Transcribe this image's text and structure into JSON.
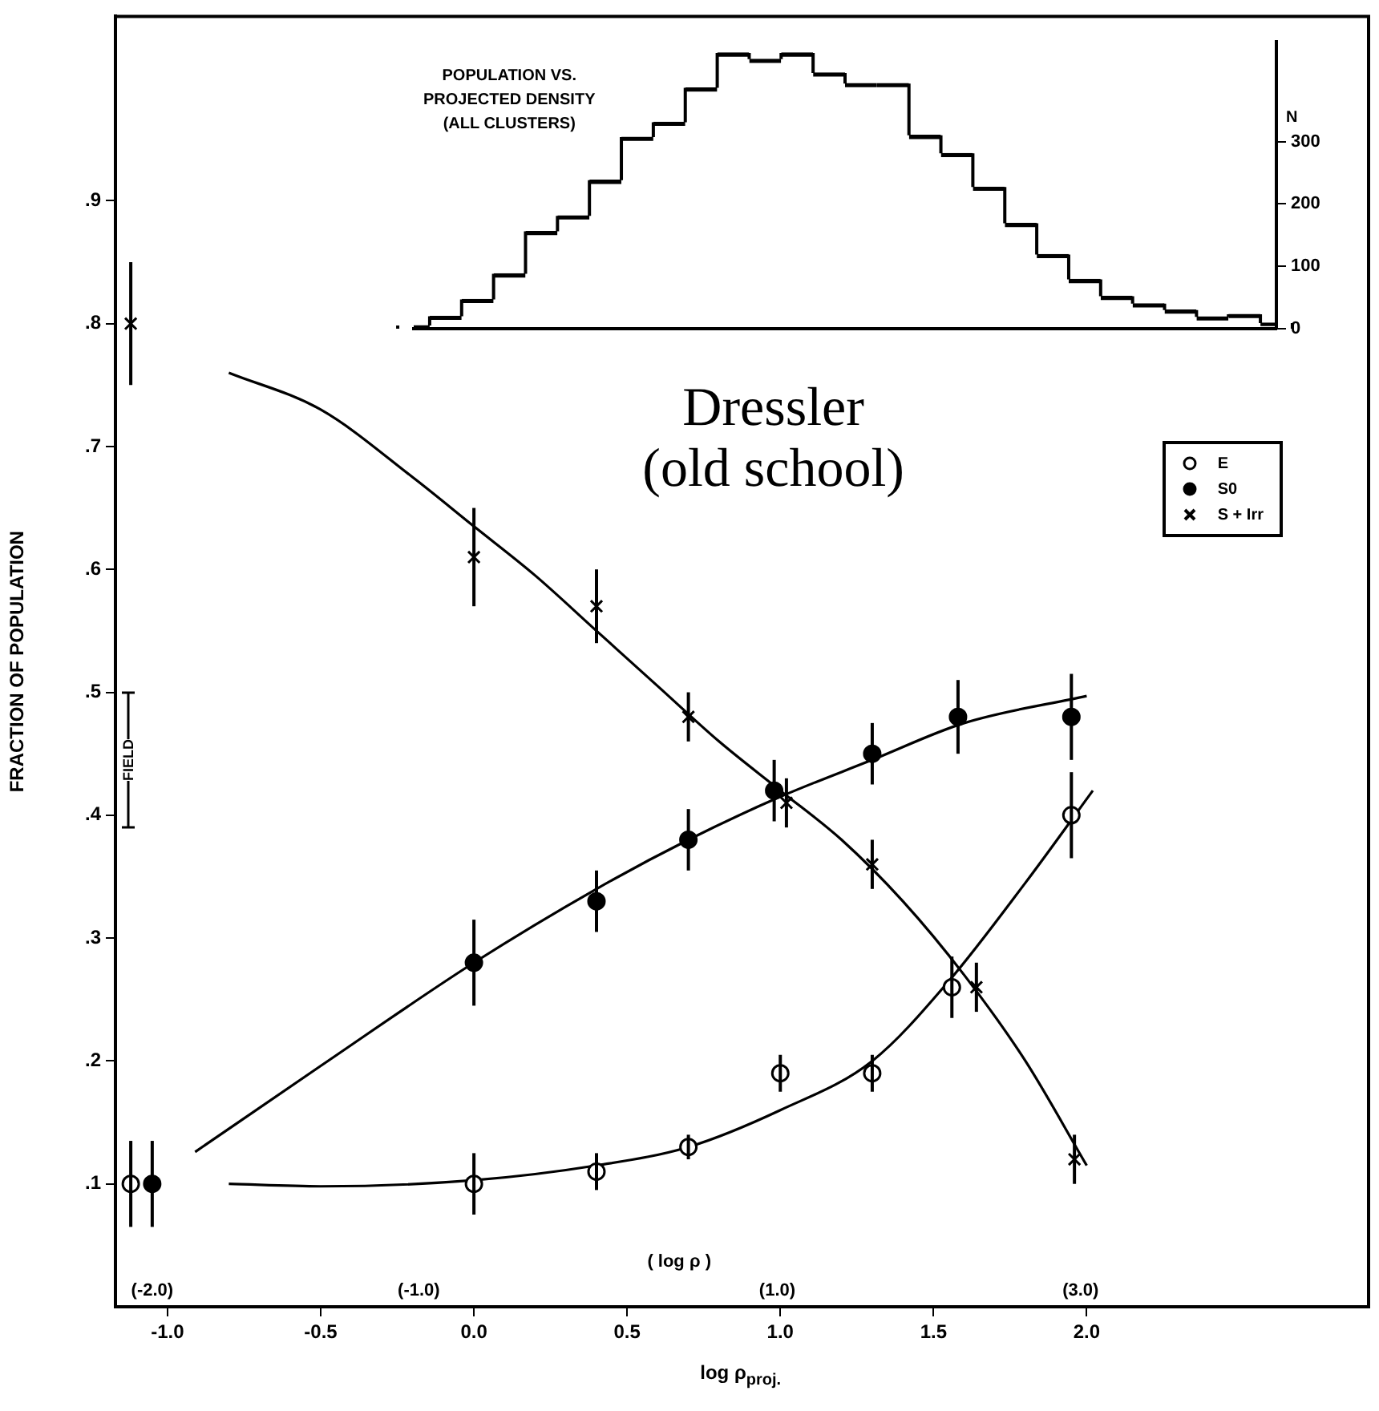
{
  "chart_data": [
    {
      "type": "scatter",
      "xlabel": "log ρ$_{proj.}$",
      "ylabel": "FRACTION OF POPULATION",
      "xlim": [
        -1.17,
        2.92
      ],
      "xticks": [
        {
          "value": -1,
          "label": "-1.0"
        },
        {
          "value": -0.5,
          "label": "-0.5"
        },
        {
          "value": 0,
          "label": "0.0"
        },
        {
          "value": 0.5,
          "label": "0.5"
        },
        {
          "value": 1,
          "label": "1.0"
        },
        {
          "value": 1.5,
          "label": "1.5"
        },
        {
          "value": 2,
          "label": "2.0"
        }
      ],
      "ylim": [
        0,
        1.05
      ],
      "yticks": [
        {
          "value": 0.1,
          "label": ".1"
        },
        {
          "value": 0.2,
          "label": ".2"
        },
        {
          "value": 0.3,
          "label": ".3"
        },
        {
          "value": 0.4,
          "label": ".4"
        },
        {
          "value": 0.5,
          "label": ".5"
        },
        {
          "value": 0.6,
          "label": ".6"
        },
        {
          "value": 0.7,
          "label": ".7"
        },
        {
          "value": 0.8,
          "label": ".8"
        },
        {
          "value": 0.9,
          "label": ".9"
        }
      ],
      "legend": "top right",
      "grid": false,
      "annotations": [
        "Dressler\n(old school)",
        "( log ρ )",
        "(-2.0)",
        "(-1.0)",
        "(1.0)",
        "(3.0)",
        {
          "text": "FIELD",
          "x": -1.13,
          "y": 0.445
        }
      ],
      "series": [
        {
          "name": "E",
          "type": "scatter",
          "marker": "circle",
          "color": "#ffffff",
          "x": [
            -1.12,
            0,
            0.4,
            0.7,
            1.0,
            1.3,
            1.56,
            1.95
          ],
          "values": [
            0.1,
            0.1,
            0.11,
            0.13,
            0.19,
            0.19,
            0.26,
            0.4
          ],
          "errors": [
            0.035,
            0.025,
            0.015,
            0.01,
            0.015,
            0.015,
            0.025,
            0.035
          ]
        },
        {
          "name": "S0",
          "type": "scatter",
          "marker": "circle",
          "color": "#000000",
          "x": [
            -1.05,
            0,
            0.4,
            0.7,
            0.98,
            1.3,
            1.58,
            1.95
          ],
          "values": [
            0.1,
            0.28,
            0.33,
            0.38,
            0.42,
            0.45,
            0.48,
            0.48
          ],
          "errors": [
            0.035,
            0.035,
            0.025,
            0.025,
            0.025,
            0.025,
            0.03,
            0.035
          ]
        },
        {
          "name": "S + Irr",
          "type": "scatter",
          "marker": "cross",
          "color": "#000000",
          "x": [
            -1.12,
            0,
            0.4,
            0.7,
            1.02,
            1.3,
            1.64,
            1.96
          ],
          "values": [
            0.8,
            0.61,
            0.57,
            0.48,
            0.41,
            0.36,
            0.26,
            0.12
          ],
          "errors": [
            0.05,
            0.04,
            0.03,
            0.02,
            0.02,
            0.02,
            0.02,
            0.02
          ]
        },
        {
          "type": "line",
          "marker": "none",
          "color": "#000000",
          "x": [
            -0.8,
            -0.5,
            -0.2,
            0,
            0.2,
            0.4,
            0.6,
            0.8,
            1.0,
            1.2,
            1.4,
            1.6,
            1.8,
            2.0
          ],
          "values": [
            0.76,
            0.73,
            0.675,
            0.635,
            0.595,
            0.55,
            0.505,
            0.46,
            0.42,
            0.38,
            0.33,
            0.27,
            0.2,
            0.115
          ]
        },
        {
          "type": "line",
          "marker": "none",
          "color": "#000000",
          "x": [
            -0.91,
            -0.5,
            0,
            0.4,
            0.7,
            1.0,
            1.3,
            1.6,
            2.0
          ],
          "values": [
            0.126,
            0.196,
            0.28,
            0.34,
            0.38,
            0.415,
            0.445,
            0.475,
            0.497
          ]
        },
        {
          "type": "line",
          "marker": "none",
          "color": "#000000",
          "x": [
            -0.8,
            -0.5,
            0,
            0.4,
            0.7,
            1.0,
            1.3,
            1.55,
            1.8,
            2.02
          ],
          "values": [
            0.1,
            0.098,
            0.103,
            0.115,
            0.13,
            0.16,
            0.2,
            0.265,
            0.345,
            0.42
          ]
        }
      ]
    },
    {
      "type": "bar",
      "title": "POPULATION VS.\nPROJECTED DENSITY\n(ALL CLUSTERS)",
      "ylabel": "N",
      "color": "#000000",
      "categories": [
        null,
        null,
        null,
        null,
        null,
        null,
        null,
        null,
        null,
        null,
        null,
        null,
        null,
        null,
        null,
        null,
        null,
        null,
        null,
        null,
        null,
        null,
        null,
        null,
        null,
        null,
        null,
        null
      ],
      "values": [
        5,
        20,
        47,
        88,
        156,
        181,
        238,
        307,
        331,
        386,
        442,
        432,
        442,
        410,
        393,
        393,
        310,
        281,
        227,
        169,
        119,
        79,
        52,
        40,
        30,
        19,
        23,
        9
      ],
      "ylim": [
        0,
        460
      ],
      "yticks": [
        0,
        100,
        200,
        300
      ]
    }
  ]
}
